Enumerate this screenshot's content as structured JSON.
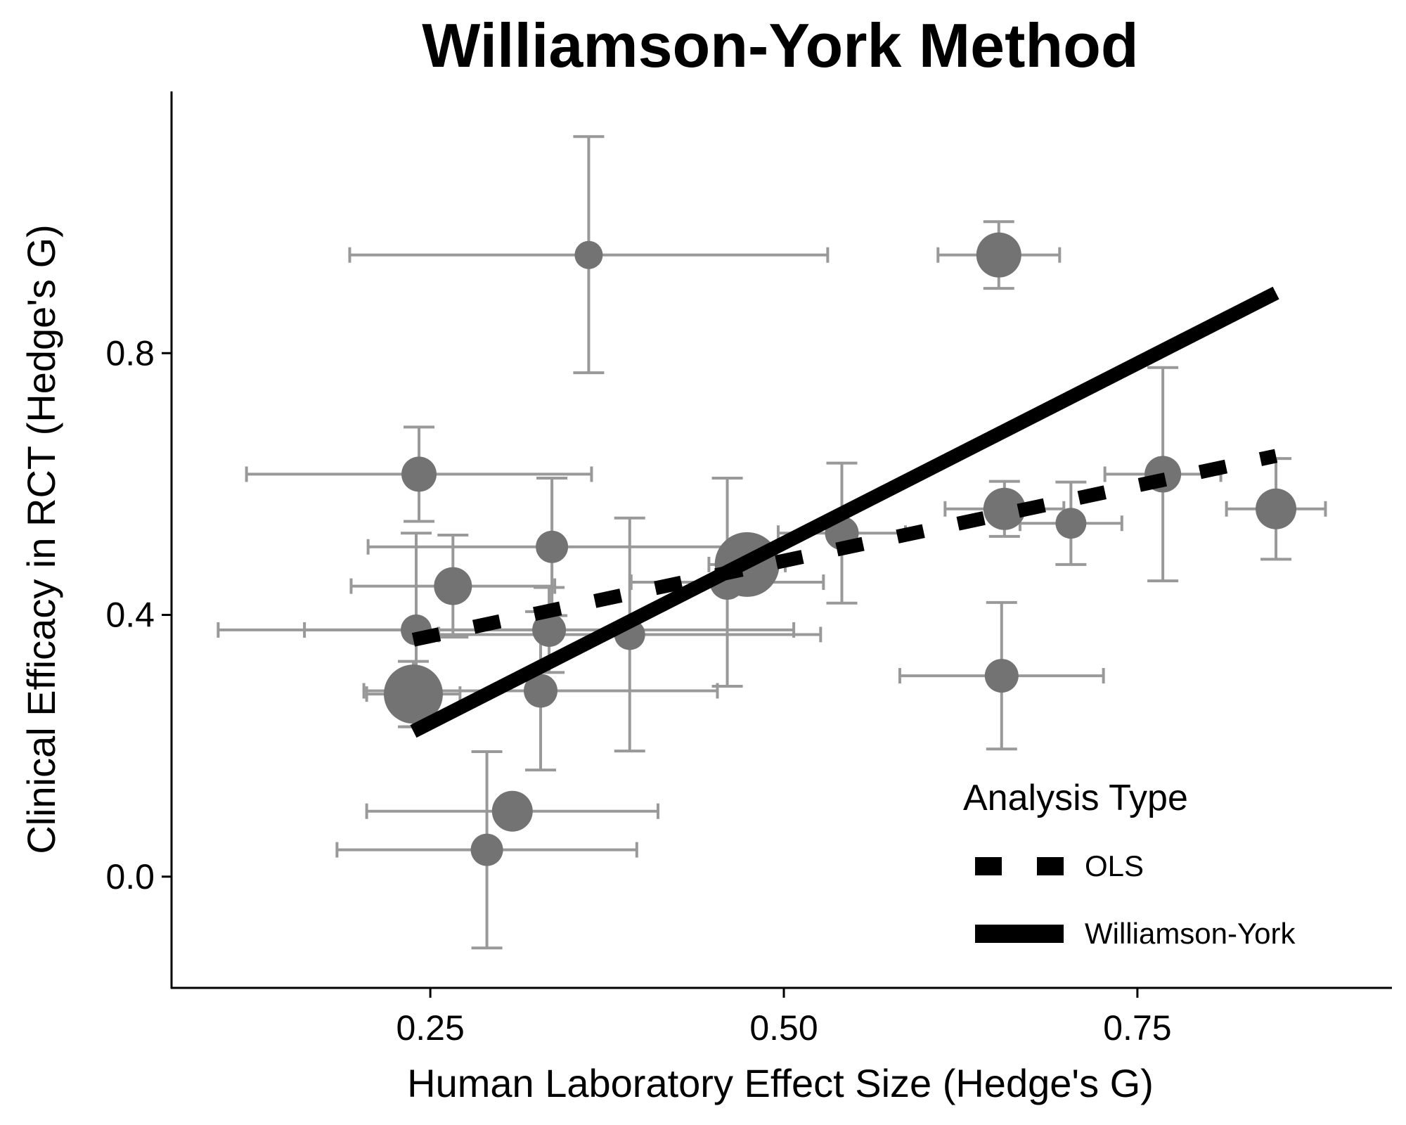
{
  "chart_data": {
    "type": "scatter",
    "title": "Williamson-York Method",
    "xlabel": "Human Laboratory Effect Size (Hedge's G)",
    "ylabel": "Clinical Efficacy in RCT (Hedge's G)",
    "xlim": [
      0.067,
      0.93
    ],
    "ylim": [
      -0.17,
      1.2
    ],
    "x_ticks": [
      0.25,
      0.5,
      0.75
    ],
    "x_tick_labels": [
      "0.25",
      "0.50",
      "0.75"
    ],
    "y_ticks": [
      0.0,
      0.4,
      0.8
    ],
    "y_tick_labels": [
      "0.0",
      "0.4",
      "0.8"
    ],
    "grid": false,
    "point_color": "#737373",
    "errorbar_color": "#999999",
    "points": [
      {
        "x": 0.362,
        "y": 0.95,
        "x_lo": 0.193,
        "x_hi": 0.531,
        "y_lo": 0.77,
        "y_hi": 1.131,
        "size": 0.4
      },
      {
        "x": 0.652,
        "y": 0.95,
        "x_lo": 0.609,
        "x_hi": 0.695,
        "y_lo": 0.899,
        "y_hi": 1.001,
        "size": 1.6
      },
      {
        "x": 0.242,
        "y": 0.615,
        "x_lo": 0.12,
        "x_hi": 0.364,
        "y_lo": 0.543,
        "y_hi": 0.687,
        "size": 0.9
      },
      {
        "x": 0.336,
        "y": 0.504,
        "x_lo": 0.206,
        "x_hi": 0.466,
        "y_lo": 0.399,
        "y_hi": 0.609,
        "size": 0.7
      },
      {
        "x": 0.266,
        "y": 0.444,
        "x_lo": 0.194,
        "x_hi": 0.338,
        "y_lo": 0.366,
        "y_hi": 0.522,
        "size": 1.1
      },
      {
        "x": 0.24,
        "y": 0.377,
        "x_lo": 0.1,
        "x_hi": 0.381,
        "y_lo": 0.229,
        "y_hi": 0.525,
        "size": 0.6
      },
      {
        "x": 0.334,
        "y": 0.377,
        "x_lo": 0.161,
        "x_hi": 0.507,
        "y_lo": 0.312,
        "y_hi": 0.442,
        "size": 0.8
      },
      {
        "x": 0.391,
        "y": 0.37,
        "x_lo": 0.256,
        "x_hi": 0.526,
        "y_lo": 0.192,
        "y_hi": 0.548,
        "size": 0.6
      },
      {
        "x": 0.238,
        "y": 0.279,
        "x_lo": 0.205,
        "x_hi": 0.271,
        "y_lo": 0.229,
        "y_hi": 0.329,
        "size": 2.6
      },
      {
        "x": 0.328,
        "y": 0.284,
        "x_lo": 0.203,
        "x_hi": 0.453,
        "y_lo": 0.163,
        "y_hi": 0.405,
        "size": 0.8
      },
      {
        "x": 0.46,
        "y": 0.45,
        "x_lo": 0.392,
        "x_hi": 0.528,
        "y_lo": 0.291,
        "y_hi": 0.609,
        "size": 0.9
      },
      {
        "x": 0.474,
        "y": 0.477,
        "x_lo": 0.447,
        "x_hi": 0.501,
        "y_lo": 0.45,
        "y_hi": 0.504,
        "size": 3.0
      },
      {
        "x": 0.541,
        "y": 0.525,
        "x_lo": 0.496,
        "x_hi": 0.586,
        "y_lo": 0.418,
        "y_hi": 0.632,
        "size": 0.8
      },
      {
        "x": 0.656,
        "y": 0.562,
        "x_lo": 0.614,
        "x_hi": 0.698,
        "y_lo": 0.52,
        "y_hi": 0.604,
        "size": 1.4
      },
      {
        "x": 0.703,
        "y": 0.54,
        "x_lo": 0.667,
        "x_hi": 0.739,
        "y_lo": 0.477,
        "y_hi": 0.603,
        "size": 0.6
      },
      {
        "x": 0.768,
        "y": 0.615,
        "x_lo": 0.727,
        "x_hi": 0.809,
        "y_lo": 0.452,
        "y_hi": 0.778,
        "size": 1.0
      },
      {
        "x": 0.848,
        "y": 0.562,
        "x_lo": 0.813,
        "x_hi": 0.883,
        "y_lo": 0.485,
        "y_hi": 0.639,
        "size": 1.3
      },
      {
        "x": 0.654,
        "y": 0.307,
        "x_lo": 0.582,
        "x_hi": 0.726,
        "y_lo": 0.195,
        "y_hi": 0.419,
        "size": 0.8
      },
      {
        "x": 0.308,
        "y": 0.1,
        "x_lo": 0.205,
        "x_hi": 0.411,
        "y_lo": 0.082,
        "y_hi": 0.118,
        "size": 1.3
      },
      {
        "x": 0.29,
        "y": 0.041,
        "x_lo": 0.184,
        "x_hi": 0.396,
        "y_lo": -0.109,
        "y_hi": 0.191,
        "size": 0.7
      }
    ],
    "lines": [
      {
        "name": "OLS",
        "style": "dashed",
        "x": [
          0.238,
          0.848
        ],
        "y": [
          0.362,
          0.643
        ]
      },
      {
        "name": "Williamson-York",
        "style": "solid",
        "x": [
          0.238,
          0.848
        ],
        "y": [
          0.222,
          0.892
        ]
      }
    ],
    "legend": {
      "title": "Analysis Type",
      "position": "bottom-right",
      "entries": [
        "OLS",
        "Williamson-York"
      ]
    }
  }
}
